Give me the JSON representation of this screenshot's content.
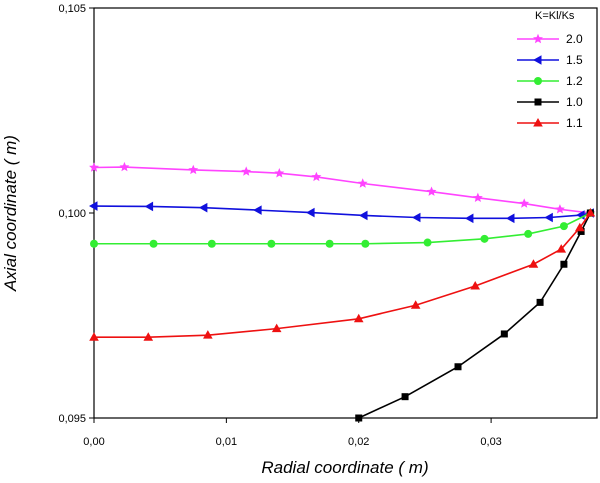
{
  "chart_data": {
    "type": "line",
    "xlabel": "Radial coordinate ( m)",
    "ylabel": "Axial coordinate ( m)",
    "xlim": [
      0.0,
      0.038
    ],
    "ylim": [
      0.095,
      0.105
    ],
    "xticks": [
      {
        "value": 0.0,
        "label": "0,00"
      },
      {
        "value": 0.01,
        "label": "0,01"
      },
      {
        "value": 0.02,
        "label": "0,02"
      },
      {
        "value": 0.03,
        "label": "0,03"
      }
    ],
    "yticks": [
      {
        "value": 0.095,
        "label": "0,095"
      },
      {
        "value": 0.1,
        "label": "0,100"
      },
      {
        "value": 0.105,
        "label": "0,105"
      }
    ],
    "grid": false,
    "legend": {
      "title": "K=Kl/Ks",
      "position": "top-right"
    },
    "series": [
      {
        "name": "2.0",
        "color": "#ff44ff",
        "marker": "star",
        "x": [
          0.0,
          0.0023,
          0.0075,
          0.0115,
          0.014,
          0.0168,
          0.0203,
          0.0255,
          0.029,
          0.0325,
          0.0352,
          0.0375
        ],
        "y": [
          0.10111,
          0.10112,
          0.10105,
          0.10101,
          0.10097,
          0.10088,
          0.10072,
          0.10052,
          0.10037,
          0.10023,
          0.10009,
          0.1
        ]
      },
      {
        "name": "1.5",
        "color": "#1010dd",
        "marker": "triangle-left",
        "x": [
          0.0,
          0.0042,
          0.0083,
          0.0124,
          0.0164,
          0.0204,
          0.0244,
          0.0284,
          0.0315,
          0.0344,
          0.0368,
          0.0375
        ],
        "y": [
          0.10017,
          0.10016,
          0.10013,
          0.10007,
          0.10001,
          0.09994,
          0.09989,
          0.09987,
          0.09987,
          0.09989,
          0.09995,
          0.1
        ]
      },
      {
        "name": "1.2",
        "color": "#33ee33",
        "marker": "circle",
        "x": [
          0.0,
          0.0045,
          0.0089,
          0.0134,
          0.0178,
          0.0205,
          0.0252,
          0.0295,
          0.0328,
          0.0355,
          0.0375
        ],
        "y": [
          0.09925,
          0.09925,
          0.09925,
          0.09925,
          0.09925,
          0.09925,
          0.09928,
          0.09937,
          0.09949,
          0.09968,
          0.1
        ]
      },
      {
        "name": "1.0",
        "color": "#000000",
        "marker": "square",
        "x": [
          0.02,
          0.0235,
          0.0275,
          0.031,
          0.0337,
          0.0355,
          0.0368,
          0.0375
        ],
        "y": [
          0.095,
          0.09552,
          0.09625,
          0.09705,
          0.09782,
          0.09875,
          0.09955,
          0.1
        ]
      },
      {
        "name": "1.1",
        "color": "#ee1111",
        "marker": "triangle-up",
        "x": [
          0.0,
          0.0041,
          0.0086,
          0.0138,
          0.02,
          0.0243,
          0.0288,
          0.0332,
          0.0353,
          0.0367,
          0.0375
        ],
        "y": [
          0.09697,
          0.09697,
          0.09702,
          0.09718,
          0.09742,
          0.09775,
          0.09822,
          0.09875,
          0.09912,
          0.09964,
          0.1
        ]
      }
    ]
  }
}
